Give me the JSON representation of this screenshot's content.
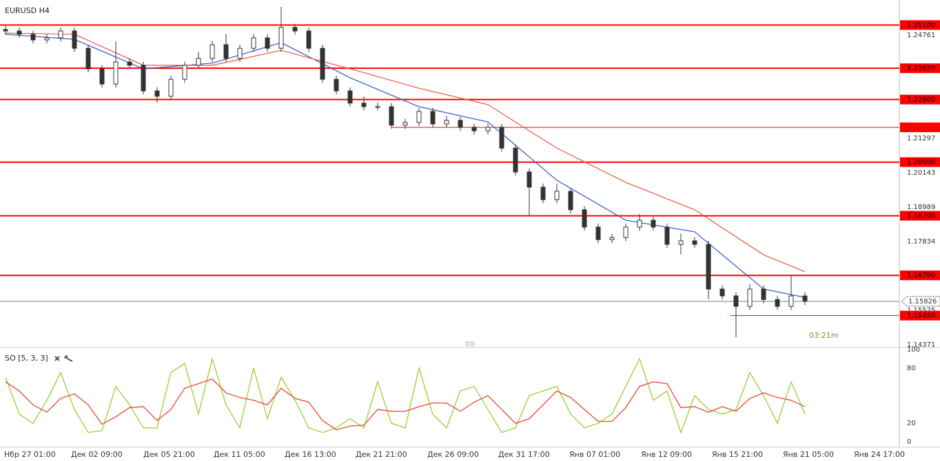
{
  "chart_data": [
    {
      "type": "candlestick",
      "title": "EURUSD H4",
      "open": [
        1.2495,
        1.249,
        1.2479,
        1.246,
        1.2467,
        1.249,
        1.2432,
        1.2363,
        1.2312,
        1.2386,
        1.2375,
        1.2289,
        1.2271,
        1.2328,
        1.2375,
        1.2398,
        1.2444,
        1.2398,
        1.2432,
        1.2467,
        1.2432,
        1.2502,
        1.249,
        1.2432,
        1.2328,
        1.2289,
        1.2248,
        1.2236,
        1.2236,
        1.2174,
        1.2183,
        1.222,
        1.2178,
        1.219,
        1.2167,
        1.2155,
        1.2167,
        1.2097,
        1.2017,
        1.1966,
        1.1924,
        1.1952,
        1.189,
        1.1832,
        1.179,
        1.1797,
        1.1832,
        1.1855,
        1.1832,
        1.1774,
        1.1786,
        1.1774,
        1.1624,
        1.1601,
        1.1566,
        1.1624,
        1.1589,
        1.1566,
        1.1601
      ],
      "high": [
        1.2507,
        1.2502,
        1.2491,
        1.2479,
        1.2502,
        1.2502,
        1.2444,
        1.2375,
        1.2455,
        1.2398,
        1.2387,
        1.2301,
        1.234,
        1.2387,
        1.242,
        1.2456,
        1.248,
        1.2444,
        1.2479,
        1.2479,
        1.2571,
        1.2514,
        1.2502,
        1.2444,
        1.234,
        1.2301,
        1.227,
        1.225,
        1.2248,
        1.2195,
        1.2232,
        1.2232,
        1.2205,
        1.2202,
        1.2179,
        1.2179,
        1.2179,
        1.2109,
        1.2029,
        1.1978,
        1.1978,
        1.1964,
        1.1902,
        1.1844,
        1.1809,
        1.1844,
        1.1875,
        1.1867,
        1.1844,
        1.181,
        1.1798,
        1.1786,
        1.1636,
        1.1613,
        1.164,
        1.1636,
        1.1601,
        1.167,
        1.1613
      ],
      "low": [
        1.2478,
        1.2467,
        1.2448,
        1.2448,
        1.2455,
        1.242,
        1.2351,
        1.23,
        1.23,
        1.2363,
        1.2277,
        1.225,
        1.2259,
        1.2316,
        1.2363,
        1.2386,
        1.2386,
        1.2386,
        1.242,
        1.242,
        1.242,
        1.2478,
        1.242,
        1.2316,
        1.2277,
        1.2236,
        1.2224,
        1.2224,
        1.2162,
        1.2162,
        1.2171,
        1.2166,
        1.2166,
        1.2155,
        1.2143,
        1.2143,
        1.2085,
        1.2005,
        1.1872,
        1.1912,
        1.1912,
        1.1878,
        1.182,
        1.1778,
        1.1778,
        1.1785,
        1.182,
        1.182,
        1.1762,
        1.174,
        1.1762,
        1.159,
        1.1589,
        1.1462,
        1.1554,
        1.1577,
        1.1554,
        1.1554,
        1.1571
      ],
      "close": [
        1.249,
        1.2479,
        1.246,
        1.2467,
        1.249,
        1.2432,
        1.2363,
        1.2312,
        1.2386,
        1.2375,
        1.2289,
        1.2271,
        1.2328,
        1.2375,
        1.2398,
        1.2444,
        1.2398,
        1.2432,
        1.2467,
        1.2432,
        1.2502,
        1.249,
        1.2432,
        1.2328,
        1.2289,
        1.2248,
        1.2236,
        1.2236,
        1.2174,
        1.2183,
        1.222,
        1.2178,
        1.219,
        1.2167,
        1.2155,
        1.2167,
        1.2097,
        1.2017,
        1.1966,
        1.1924,
        1.1952,
        1.189,
        1.1832,
        1.179,
        1.1797,
        1.1832,
        1.1855,
        1.1832,
        1.1774,
        1.1786,
        1.1774,
        1.1624,
        1.1601,
        1.1566,
        1.1624,
        1.1589,
        1.1566,
        1.1601,
        1.1583
      ],
      "up_color": "#ffffff",
      "down_color": "#333333",
      "moving_averages": [
        {
          "color": "#2a55c9",
          "x": [
            0,
            5,
            10,
            15,
            20,
            25,
            30,
            35,
            40,
            45,
            50,
            55,
            58
          ],
          "values": [
            1.2479,
            1.2462,
            1.2363,
            1.2382,
            1.2451,
            1.2333,
            1.2236,
            1.2185,
            1.1989,
            1.1855,
            1.1816,
            1.1624,
            1.1596
          ]
        },
        {
          "color": "#f0533c",
          "x": [
            0,
            5,
            10,
            15,
            20,
            25,
            30,
            35,
            40,
            45,
            50,
            55,
            58
          ],
          "values": [
            1.2483,
            1.2479,
            1.2375,
            1.2375,
            1.2425,
            1.2363,
            1.2298,
            1.2243,
            1.2097,
            1.1982,
            1.189,
            1.1739,
            1.1682
          ]
        }
      ],
      "levels": [
        {
          "value": 1.251,
          "label": "1.25100",
          "width": 2,
          "from": -0.4
        },
        {
          "value": 1.2365,
          "label": "1.23650",
          "width": 2,
          "from": -0.4
        },
        {
          "value": 1.226,
          "label": "1.22600",
          "width": 2,
          "from": -0.4
        },
        {
          "value": 1.21667,
          "width": 1,
          "from": 28
        },
        {
          "value": 1.205,
          "label": "1.20500",
          "width": 2,
          "from": -0.4
        },
        {
          "value": 1.187,
          "label": "1.18700",
          "width": 2,
          "from": -0.4
        },
        {
          "value": 1.167,
          "label": "1.16700",
          "width": 2,
          "from": -0.4
        },
        {
          "value": 1.1535,
          "label": "1.15350",
          "width": 1,
          "from": 52.6
        }
      ],
      "level_color": "#ff0000",
      "current_price": 1.15826,
      "countdown": "03:21m",
      "ylim": [
        1.1428,
        1.2594
      ],
      "yticks": [
        1.24761,
        1.21297,
        1.20143,
        1.18989,
        1.17834,
        1.15525,
        1.14371
      ],
      "xlim": [
        -0.4,
        64.6
      ],
      "xticks": [
        {
          "value": 0,
          "label": "Нбр 27 01:00"
        },
        {
          "value": 4.85,
          "label": "Дек 02 09:00"
        },
        {
          "value": 10.1,
          "label": "Дек 05 21:00"
        },
        {
          "value": 15.2,
          "label": "Дек 11 05:00"
        },
        {
          "value": 20.35,
          "label": "Дек 16 13:00"
        },
        {
          "value": 25.5,
          "label": "Дек 21 21:00"
        },
        {
          "value": 30.7,
          "label": "Дек 26 09:00"
        },
        {
          "value": 35.85,
          "label": "Дек 31 17:00"
        },
        {
          "value": 41,
          "label": "Янв 07 01:00"
        },
        {
          "value": 46.2,
          "label": "Янв 12 09:00"
        },
        {
          "value": 51.35,
          "label": "Янв 15 21:00"
        },
        {
          "value": 56.5,
          "label": "Янв 21 05:00"
        },
        {
          "value": 61.65,
          "label": "Янв 24 17:00"
        }
      ]
    },
    {
      "type": "line",
      "title": "SO [5, 3, 3]",
      "ylim": [
        0,
        100
      ],
      "yticks": [
        0,
        20,
        80,
        100
      ],
      "series": [
        {
          "color": "#9acd32",
          "values": [
            70,
            30,
            20,
            45,
            75,
            35,
            10,
            12,
            60,
            40,
            15,
            15,
            75,
            85,
            30,
            90,
            40,
            15,
            80,
            25,
            70,
            45,
            15,
            10,
            15,
            25,
            15,
            65,
            20,
            15,
            80,
            30,
            15,
            55,
            60,
            35,
            10,
            15,
            50,
            55,
            60,
            30,
            15,
            20,
            30,
            60,
            90,
            45,
            55,
            10,
            50,
            35,
            30,
            35,
            75,
            50,
            20,
            65,
            30
          ]
        },
        {
          "color": "#e8452c",
          "values": [
            65,
            55,
            40,
            32,
            47,
            52,
            40,
            19,
            27,
            37,
            38,
            23,
            35,
            58,
            63,
            68,
            53,
            48,
            45,
            40,
            58,
            47,
            43,
            23,
            13,
            17,
            18,
            35,
            33,
            33,
            38,
            42,
            42,
            33,
            43,
            50,
            35,
            20,
            25,
            40,
            55,
            48,
            35,
            22,
            22,
            37,
            60,
            65,
            63,
            37,
            38,
            32,
            38,
            33,
            47,
            53,
            48,
            45,
            38
          ]
        }
      ]
    }
  ]
}
